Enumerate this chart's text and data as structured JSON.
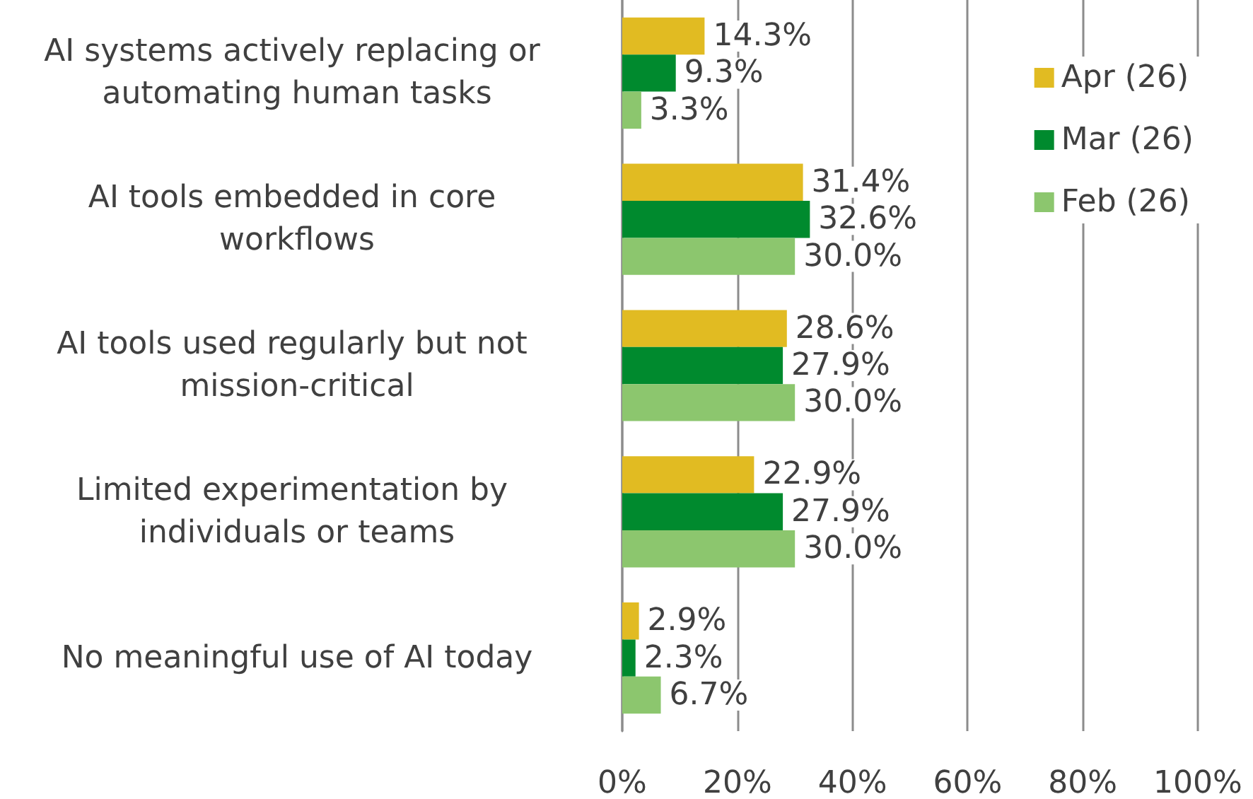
{
  "chart_data": {
    "type": "bar",
    "orientation": "horizontal",
    "categories": [
      "AI systems actively replacing or automating human tasks",
      "AI tools embedded in core workflows",
      "AI tools used regularly but not mission-critical",
      "Limited experimentation by individuals or teams",
      "No meaningful use of AI today"
    ],
    "series": [
      {
        "name": "Apr (26)",
        "color": "#e1bb22",
        "values": [
          14.3,
          31.4,
          28.6,
          22.9,
          2.9
        ],
        "value_labels": [
          "14.3%",
          "31.4%",
          "28.6%",
          "22.9%",
          "2.9%"
        ]
      },
      {
        "name": "Mar (26)",
        "color": "#008a2e",
        "values": [
          9.3,
          32.6,
          27.9,
          27.9,
          2.3
        ],
        "value_labels": [
          "9.3%",
          "32.6%",
          "27.9%",
          "27.9%",
          "2.3%"
        ]
      },
      {
        "name": "Feb (26)",
        "color": "#8cc66e",
        "values": [
          3.3,
          30.0,
          30.0,
          30.0,
          6.7
        ],
        "value_labels": [
          "3.3%",
          "30.0%",
          "30.0%",
          "30.0%",
          "6.7%"
        ]
      }
    ],
    "xlim": [
      0,
      100
    ],
    "xticks": [
      {
        "value": 0,
        "label": "0%"
      },
      {
        "value": 20,
        "label": "20%"
      },
      {
        "value": 40,
        "label": "40%"
      },
      {
        "value": 60,
        "label": "60%"
      },
      {
        "value": 80,
        "label": "80%"
      },
      {
        "value": 100,
        "label": "100%"
      }
    ],
    "grid": "x",
    "legend": "top right"
  }
}
